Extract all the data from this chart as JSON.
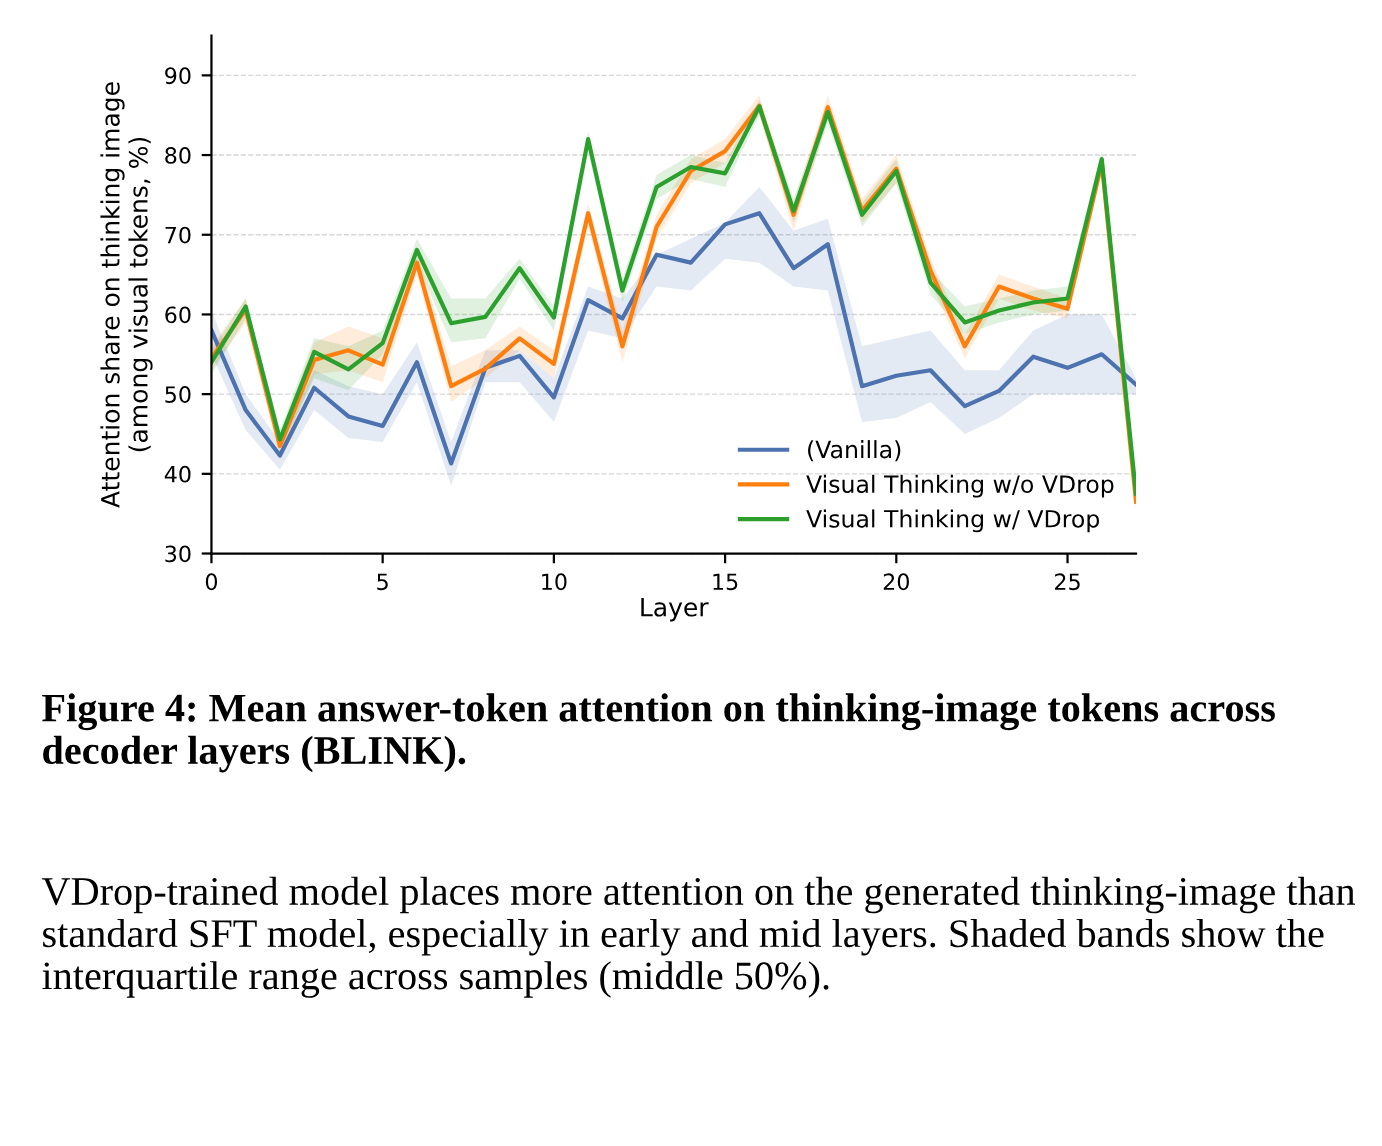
{
  "chart_data": {
    "type": "line",
    "xlabel": "Layer",
    "ylabel": "Attention share on thinking image\n(among visual tokens, %)",
    "x": [
      0,
      1,
      2,
      3,
      4,
      5,
      6,
      7,
      8,
      9,
      10,
      11,
      12,
      13,
      14,
      15,
      16,
      17,
      18,
      19,
      20,
      21,
      22,
      23,
      24,
      25,
      26,
      27
    ],
    "series": [
      {
        "name": "(Vanilla)",
        "color": "#4c72b0",
        "values": [
          58,
          48,
          42.3,
          50.8,
          47.2,
          46,
          54,
          41.3,
          53.3,
          54.8,
          49.6,
          61.8,
          59.5,
          67.5,
          66.5,
          71.3,
          72.7,
          65.8,
          68.8,
          51,
          52.3,
          53,
          48.5,
          50.4,
          54.7,
          53.3,
          55,
          51.2
        ],
        "lower": [
          55,
          45.5,
          40.5,
          48,
          44.5,
          44,
          51.5,
          38.5,
          51.5,
          51.5,
          46.5,
          58,
          57,
          63.5,
          63,
          67,
          66.5,
          63.5,
          63,
          46.5,
          47,
          49,
          45,
          47,
          50,
          50,
          50,
          50
        ],
        "upper": [
          60.5,
          50,
          44,
          53,
          51,
          50,
          56.5,
          44,
          55.5,
          55.5,
          52,
          63.5,
          62,
          67.5,
          69.5,
          71.5,
          76,
          70.5,
          72,
          56,
          57,
          58,
          53,
          53,
          58,
          60,
          60,
          52
        ]
      },
      {
        "name": "Visual Thinking w/o VDrop",
        "color": "#ff7f0e",
        "values": [
          54.5,
          60.6,
          43.5,
          54.3,
          55.5,
          53.7,
          66.5,
          51,
          53.2,
          57,
          53.8,
          72.7,
          56,
          71,
          78,
          80.5,
          86.2,
          72.5,
          86,
          73,
          78.3,
          65.5,
          56,
          63.5,
          62,
          60.7,
          79,
          36.5
        ],
        "lower": [
          53,
          59,
          42,
          52.5,
          53,
          51.5,
          65,
          49,
          52,
          55.5,
          52,
          71,
          54,
          69.5,
          76.5,
          79,
          85,
          70.5,
          84.5,
          71.5,
          76.5,
          64,
          54.5,
          62,
          60.5,
          59.5,
          78,
          35.5
        ],
        "upper": [
          56,
          62,
          45,
          56.5,
          58.5,
          57,
          68,
          53.5,
          55.5,
          58.5,
          55.5,
          74,
          58,
          72.5,
          79.5,
          82,
          87.5,
          74,
          87.5,
          74.5,
          80,
          67,
          57.5,
          65,
          63.5,
          62,
          80,
          38
        ]
      },
      {
        "name": "Visual Thinking w/ VDrop",
        "color": "#2ca02c",
        "values": [
          54,
          61,
          44.3,
          55.3,
          53.1,
          56.4,
          68.1,
          58.9,
          59.7,
          65.8,
          59.6,
          82,
          63,
          76,
          78.5,
          77.7,
          86.1,
          73,
          85.4,
          72.5,
          78,
          64,
          59,
          60.5,
          61.5,
          62,
          79.5,
          37.5
        ],
        "lower": [
          52.5,
          59.5,
          43,
          52,
          50.5,
          55,
          66.5,
          56.5,
          57,
          64.5,
          58,
          80.5,
          61.5,
          74.5,
          77,
          76,
          85,
          71.5,
          84,
          71,
          76.5,
          62.5,
          57.5,
          59,
          60,
          60.5,
          78.5,
          36.5
        ],
        "upper": [
          55.5,
          62,
          45.5,
          57,
          56,
          58,
          69.5,
          62,
          62,
          67,
          61,
          83,
          64.5,
          77.5,
          80,
          79,
          87,
          74.5,
          86.5,
          74,
          79.5,
          65.5,
          61,
          62,
          63,
          63.5,
          80.5,
          38.5
        ]
      }
    ],
    "xlim": [
      0,
      27
    ],
    "xticks": [
      0,
      5,
      10,
      15,
      20,
      25
    ],
    "ylim": [
      30,
      95
    ],
    "yticks": [
      30,
      40,
      50,
      60,
      70,
      80,
      90
    ],
    "grid": "y",
    "legend": "bottom right",
    "marker": "none",
    "line_style": "solid",
    "annotations": [
      "Figure 4: Mean answer-token attention on thinking-image tokens across decoder layers (BLINK).",
      "VDrop-trained model places more attention on the generated thinking-image than standard SFT model, especially in early and mid layers. Shaded bands show the interquartile range across samples (middle 50%)."
    ]
  }
}
